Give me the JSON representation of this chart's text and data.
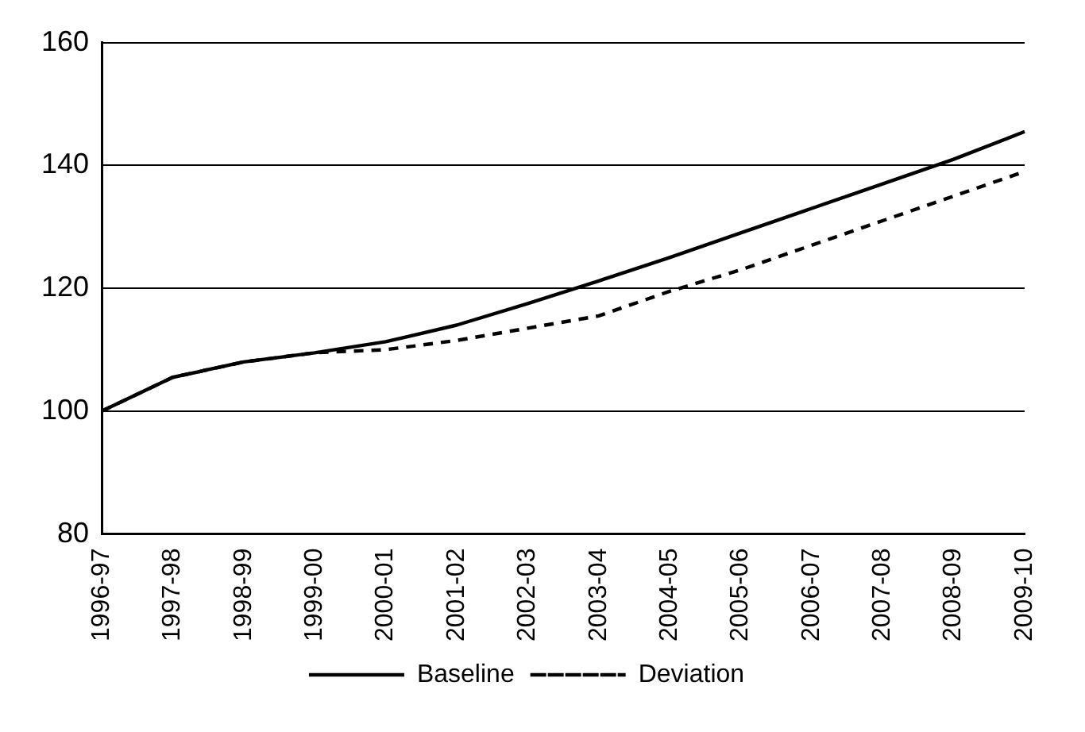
{
  "chart_data": {
    "type": "line",
    "categories": [
      "1996-97",
      "1997-98",
      "1998-99",
      "1999-00",
      "2000-01",
      "2001-02",
      "2002-03",
      "2003-04",
      "2004-05",
      "2005-06",
      "2006-07",
      "2007-08",
      "2008-09",
      "2009-10"
    ],
    "series": [
      {
        "name": "Baseline",
        "color": "#000000",
        "line_style": "solid",
        "values": [
          100,
          105.5,
          108,
          109.5,
          111.3,
          114,
          117.5,
          121.2,
          125,
          129,
          133,
          137,
          141,
          145.5
        ]
      },
      {
        "name": "Deviation",
        "color": "#000000",
        "line_style": "dashed",
        "values": [
          100,
          105.5,
          108,
          109.5,
          110,
          111.5,
          113.5,
          115.5,
          119.5,
          123,
          127,
          131,
          135,
          139
        ]
      }
    ],
    "ylim": [
      80,
      160
    ],
    "yticks": [
      80,
      100,
      120,
      140,
      160
    ],
    "grid": "y",
    "legend": "bottom",
    "marker": "none"
  }
}
